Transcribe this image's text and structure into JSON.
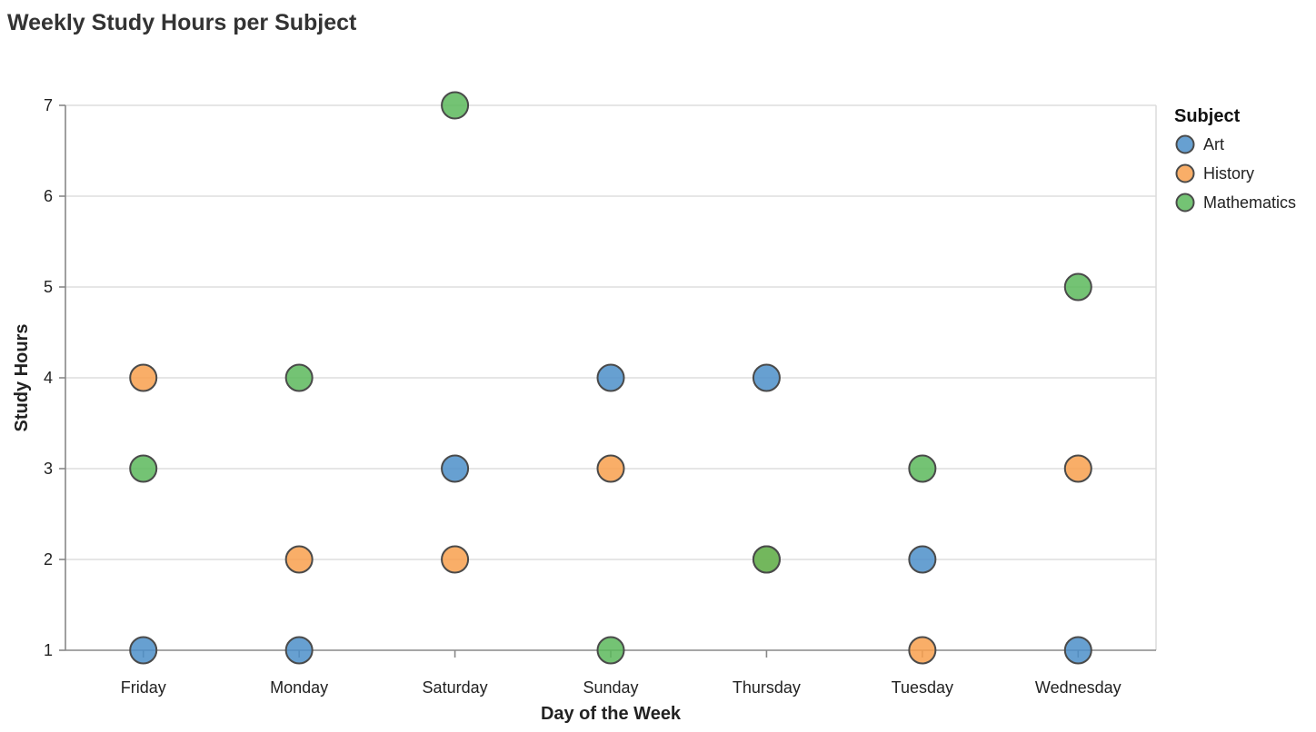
{
  "chart_data": {
    "type": "scatter",
    "title": "Weekly Study Hours per Subject",
    "xlabel": "Day of the Week",
    "ylabel": "Study Hours",
    "categories": [
      "Friday",
      "Monday",
      "Saturday",
      "Sunday",
      "Thursday",
      "Tuesday",
      "Wednesday"
    ],
    "ylim": [
      1,
      7
    ],
    "yticks": [
      1,
      2,
      3,
      4,
      5,
      6,
      7
    ],
    "grid": true,
    "legend": {
      "title": "Subject",
      "position": "right"
    },
    "series": [
      {
        "name": "Art",
        "color": "#4c8fc9",
        "points": [
          {
            "x": "Friday",
            "y": 1
          },
          {
            "x": "Monday",
            "y": 1
          },
          {
            "x": "Saturday",
            "y": 3
          },
          {
            "x": "Sunday",
            "y": 4
          },
          {
            "x": "Thursday",
            "y": 4
          },
          {
            "x": "Tuesday",
            "y": 2
          },
          {
            "x": "Wednesday",
            "y": 1
          }
        ]
      },
      {
        "name": "History",
        "color": "#f8a04e",
        "points": [
          {
            "x": "Friday",
            "y": 4
          },
          {
            "x": "Monday",
            "y": 2
          },
          {
            "x": "Saturday",
            "y": 2
          },
          {
            "x": "Sunday",
            "y": 3
          },
          {
            "x": "Thursday",
            "y": 2
          },
          {
            "x": "Tuesday",
            "y": 1
          },
          {
            "x": "Wednesday",
            "y": 3
          }
        ]
      },
      {
        "name": "Mathematics",
        "color": "#5cb85c",
        "points": [
          {
            "x": "Friday",
            "y": 3
          },
          {
            "x": "Monday",
            "y": 4
          },
          {
            "x": "Saturday",
            "y": 7
          },
          {
            "x": "Sunday",
            "y": 1
          },
          {
            "x": "Thursday",
            "y": 2
          },
          {
            "x": "Tuesday",
            "y": 3
          },
          {
            "x": "Wednesday",
            "y": 5
          }
        ]
      }
    ]
  }
}
